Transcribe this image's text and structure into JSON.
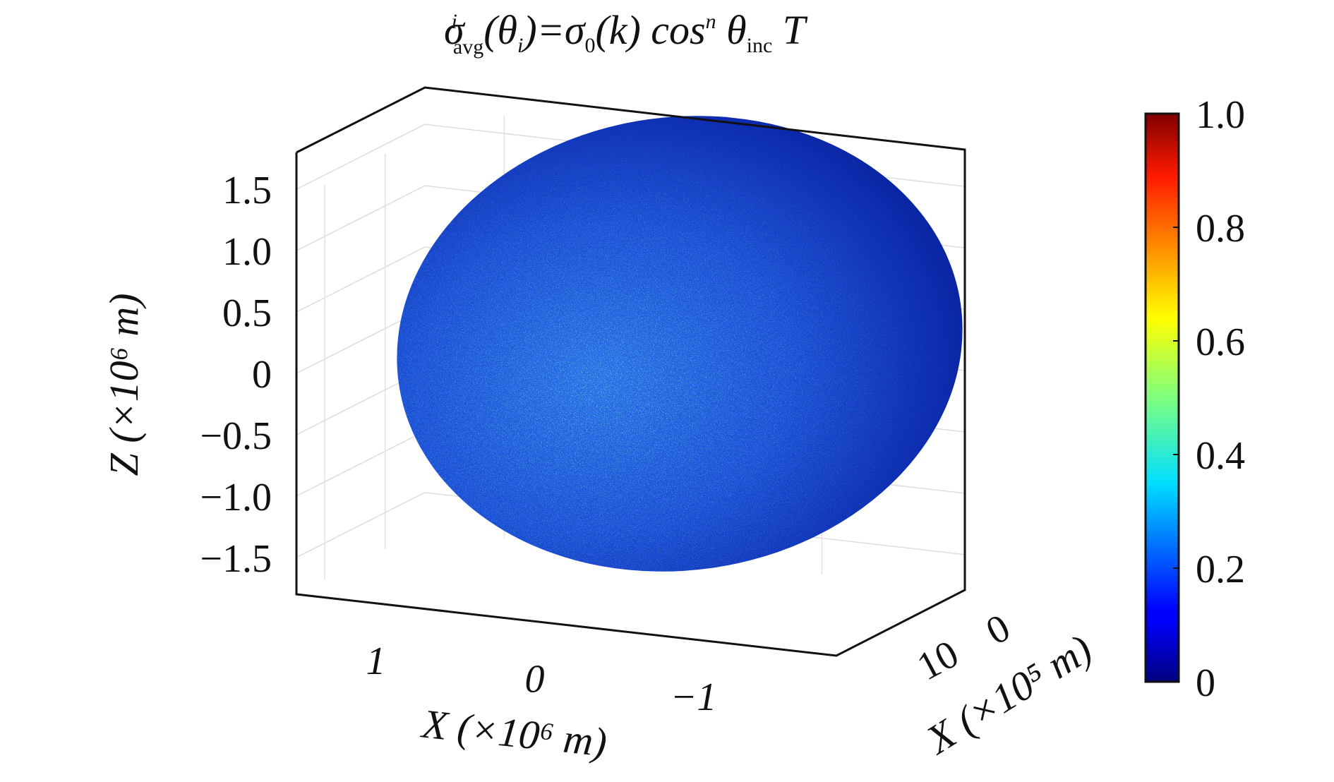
{
  "chart_data": {
    "type": "surface3d",
    "title": [
      "σ",
      "i",
      "avg",
      "(θ",
      "i",
      ")=σ",
      "0",
      "(k) cos",
      "n",
      " θ",
      "inc",
      " T"
    ],
    "xlabel": "X (×10⁶ m)",
    "ylabel": "X (×10⁵ m)",
    "zlabel": "Z (×10⁶ m)",
    "xlim": [
      1.5,
      -1.9
    ],
    "xticks": [
      1,
      0,
      {
        "value": -1,
        "label": "−1"
      }
    ],
    "ylim": [
      14.7,
      -6.6
    ],
    "yticks": [
      10,
      0
    ],
    "zlim": [
      -1.8,
      1.8
    ],
    "zticks": [
      {
        "value": 1.5,
        "label": "1.5"
      },
      {
        "value": 1.0,
        "label": "1.0"
      },
      {
        "value": 0.5,
        "label": "0.5"
      },
      0,
      {
        "value": -0.5,
        "label": "−0.5"
      },
      {
        "value": -1.0,
        "label": "−1.0"
      },
      {
        "value": -1.5,
        "label": "−1.5"
      }
    ],
    "colormap": "jet",
    "clim": [
      0,
      1
    ],
    "cticks": [
      0,
      0.2,
      0.4,
      0.6,
      0.8,
      {
        "value": 1.0,
        "label": "1.0"
      }
    ],
    "grid": true
  }
}
